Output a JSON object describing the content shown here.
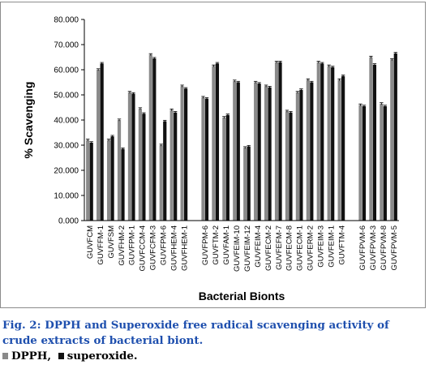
{
  "chart_data": {
    "type": "bar",
    "ylabel": "% Scavenging",
    "xlabel": "Bacterial Bionts",
    "ylim": [
      0,
      80
    ],
    "yticks": [
      "0.000",
      "10.000",
      "20.000",
      "30.000",
      "40.000",
      "50.000",
      "60.000",
      "70.000",
      "80.000"
    ],
    "grid": false,
    "series": [
      {
        "name": "DPPH",
        "color": "#8a8a8a"
      },
      {
        "name": "superoxide",
        "color": "#111111"
      }
    ],
    "groups": [
      {
        "categories": [
          "GUVFCM",
          "GUVFFM-1",
          "GUVFSM",
          "GUVFHM-2",
          "GUVFPM-1",
          "GUVFCCM-4",
          "GUVFCFM-3",
          "GUVFPM-6",
          "GUVFHEM-4",
          "GUVFHEM-1"
        ],
        "dpph": [
          32.0,
          60.0,
          32.0,
          40.0,
          51.0,
          44.5,
          66.0,
          30.0,
          44.0,
          53.5
        ],
        "superoxide": [
          31.0,
          62.5,
          33.5,
          28.5,
          50.5,
          42.5,
          64.5,
          39.5,
          43.0,
          52.5
        ]
      },
      {
        "categories": [
          "GUVFPM-6",
          "GUVFTM-2",
          "GUVFAM-1",
          "GUVFEIM-10",
          "GUVFEIM-12",
          "GUVFEIM-4",
          "GUVFECM-2",
          "GUVFEFM-7",
          "GUVFECM-8",
          "GUVFECM-1",
          "GUVFERM-2",
          "GUVFEIM-3",
          "GUVFEIM-1",
          "GUVFTM-4"
        ],
        "dpph": [
          49.0,
          61.5,
          41.0,
          55.5,
          29.0,
          55.0,
          53.5,
          63.0,
          43.5,
          51.0,
          56.0,
          63.0,
          61.5,
          56.0
        ],
        "superoxide": [
          48.5,
          62.5,
          42.0,
          55.0,
          29.5,
          54.5,
          53.0,
          63.0,
          43.0,
          52.0,
          55.0,
          62.5,
          61.0,
          57.5
        ]
      },
      {
        "categories": [
          "GUVFPVM-6",
          "GUVFPVM-3",
          "GUVFPVM-8",
          "GUVFPVM-5"
        ],
        "dpph": [
          46.0,
          65.0,
          46.5,
          64.0
        ],
        "superoxide": [
          45.5,
          62.0,
          45.5,
          66.5
        ]
      }
    ]
  },
  "caption": {
    "text": "Fig. 2: DPPH and Superoxide free radical scavenging activity of crude extracts of bacterial biont."
  },
  "legend": {
    "dpph_label": "DPPH,",
    "superoxide_label": "superoxide."
  }
}
